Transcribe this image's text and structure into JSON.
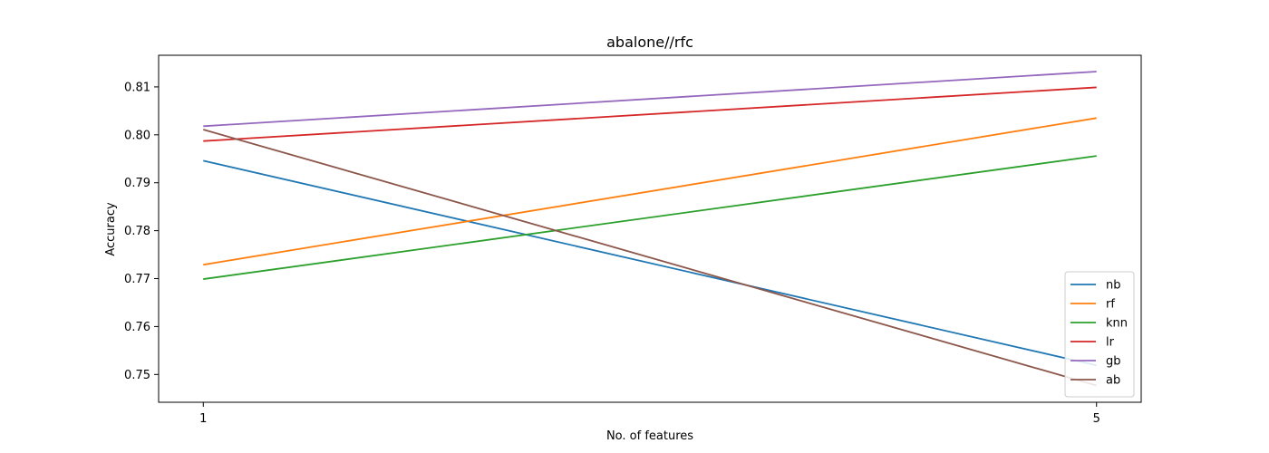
{
  "chart_data": {
    "type": "line",
    "title": "abalone//rfc",
    "xlabel": "No. of features",
    "ylabel": "Accuracy",
    "x": [
      1,
      5
    ],
    "xticks": [
      "1",
      "5"
    ],
    "xlim": [
      0.8,
      5.2
    ],
    "ylim": [
      0.7442,
      0.8166
    ],
    "yticks": [
      0.75,
      0.76,
      0.77,
      0.78,
      0.79,
      0.8,
      0.81
    ],
    "ytick_labels": [
      "0.75",
      "0.76",
      "0.77",
      "0.78",
      "0.79",
      "0.80",
      "0.81"
    ],
    "grid": false,
    "legend_position": "lower-right",
    "series": [
      {
        "name": "nb",
        "color": "#1f77b4",
        "values": [
          0.7946,
          0.7519
        ]
      },
      {
        "name": "rf",
        "color": "#ff7f0e",
        "values": [
          0.7729,
          0.8035
        ]
      },
      {
        "name": "knn",
        "color": "#2ca02c",
        "values": [
          0.7699,
          0.7956
        ]
      },
      {
        "name": "lr",
        "color": "#d62728",
        "values": [
          0.7987,
          0.8099
        ]
      },
      {
        "name": "gb",
        "color": "#9467bd",
        "values": [
          0.8018,
          0.8132
        ]
      },
      {
        "name": "ab",
        "color": "#8c564b",
        "values": [
          0.8011,
          0.7477
        ]
      }
    ]
  }
}
